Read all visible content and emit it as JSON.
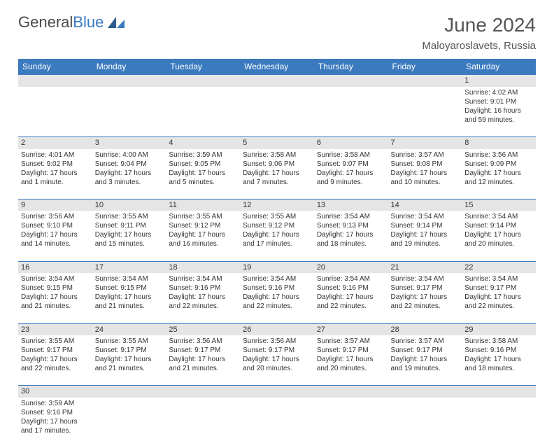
{
  "brand": {
    "part1": "General",
    "part2": "Blue"
  },
  "title": "June 2024",
  "location": "Maloyaroslavets, Russia",
  "colors": {
    "accent": "#3b7abf",
    "headerText": "#ffffff",
    "dayBg": "#e5e5e5",
    "border": "#3b7abf"
  },
  "columns": [
    "Sunday",
    "Monday",
    "Tuesday",
    "Wednesday",
    "Thursday",
    "Friday",
    "Saturday"
  ],
  "weeks": [
    [
      null,
      null,
      null,
      null,
      null,
      null,
      {
        "n": "1",
        "sr": "4:02 AM",
        "ss": "9:01 PM",
        "dl": "16 hours and 59 minutes."
      }
    ],
    [
      {
        "n": "2",
        "sr": "4:01 AM",
        "ss": "9:02 PM",
        "dl": "17 hours and 1 minute."
      },
      {
        "n": "3",
        "sr": "4:00 AM",
        "ss": "9:04 PM",
        "dl": "17 hours and 3 minutes."
      },
      {
        "n": "4",
        "sr": "3:59 AM",
        "ss": "9:05 PM",
        "dl": "17 hours and 5 minutes."
      },
      {
        "n": "5",
        "sr": "3:58 AM",
        "ss": "9:06 PM",
        "dl": "17 hours and 7 minutes."
      },
      {
        "n": "6",
        "sr": "3:58 AM",
        "ss": "9:07 PM",
        "dl": "17 hours and 9 minutes."
      },
      {
        "n": "7",
        "sr": "3:57 AM",
        "ss": "9:08 PM",
        "dl": "17 hours and 10 minutes."
      },
      {
        "n": "8",
        "sr": "3:56 AM",
        "ss": "9:09 PM",
        "dl": "17 hours and 12 minutes."
      }
    ],
    [
      {
        "n": "9",
        "sr": "3:56 AM",
        "ss": "9:10 PM",
        "dl": "17 hours and 14 minutes."
      },
      {
        "n": "10",
        "sr": "3:55 AM",
        "ss": "9:11 PM",
        "dl": "17 hours and 15 minutes."
      },
      {
        "n": "11",
        "sr": "3:55 AM",
        "ss": "9:12 PM",
        "dl": "17 hours and 16 minutes."
      },
      {
        "n": "12",
        "sr": "3:55 AM",
        "ss": "9:12 PM",
        "dl": "17 hours and 17 minutes."
      },
      {
        "n": "13",
        "sr": "3:54 AM",
        "ss": "9:13 PM",
        "dl": "17 hours and 18 minutes."
      },
      {
        "n": "14",
        "sr": "3:54 AM",
        "ss": "9:14 PM",
        "dl": "17 hours and 19 minutes."
      },
      {
        "n": "15",
        "sr": "3:54 AM",
        "ss": "9:14 PM",
        "dl": "17 hours and 20 minutes."
      }
    ],
    [
      {
        "n": "16",
        "sr": "3:54 AM",
        "ss": "9:15 PM",
        "dl": "17 hours and 21 minutes."
      },
      {
        "n": "17",
        "sr": "3:54 AM",
        "ss": "9:15 PM",
        "dl": "17 hours and 21 minutes."
      },
      {
        "n": "18",
        "sr": "3:54 AM",
        "ss": "9:16 PM",
        "dl": "17 hours and 22 minutes."
      },
      {
        "n": "19",
        "sr": "3:54 AM",
        "ss": "9:16 PM",
        "dl": "17 hours and 22 minutes."
      },
      {
        "n": "20",
        "sr": "3:54 AM",
        "ss": "9:16 PM",
        "dl": "17 hours and 22 minutes."
      },
      {
        "n": "21",
        "sr": "3:54 AM",
        "ss": "9:17 PM",
        "dl": "17 hours and 22 minutes."
      },
      {
        "n": "22",
        "sr": "3:54 AM",
        "ss": "9:17 PM",
        "dl": "17 hours and 22 minutes."
      }
    ],
    [
      {
        "n": "23",
        "sr": "3:55 AM",
        "ss": "9:17 PM",
        "dl": "17 hours and 22 minutes."
      },
      {
        "n": "24",
        "sr": "3:55 AM",
        "ss": "9:17 PM",
        "dl": "17 hours and 21 minutes."
      },
      {
        "n": "25",
        "sr": "3:56 AM",
        "ss": "9:17 PM",
        "dl": "17 hours and 21 minutes."
      },
      {
        "n": "26",
        "sr": "3:56 AM",
        "ss": "9:17 PM",
        "dl": "17 hours and 20 minutes."
      },
      {
        "n": "27",
        "sr": "3:57 AM",
        "ss": "9:17 PM",
        "dl": "17 hours and 20 minutes."
      },
      {
        "n": "28",
        "sr": "3:57 AM",
        "ss": "9:17 PM",
        "dl": "17 hours and 19 minutes."
      },
      {
        "n": "29",
        "sr": "3:58 AM",
        "ss": "9:16 PM",
        "dl": "17 hours and 18 minutes."
      }
    ],
    [
      {
        "n": "30",
        "sr": "3:59 AM",
        "ss": "9:16 PM",
        "dl": "17 hours and 17 minutes."
      },
      null,
      null,
      null,
      null,
      null,
      null
    ]
  ],
  "labels": {
    "sunrise": "Sunrise:",
    "sunset": "Sunset:",
    "daylight": "Daylight:"
  }
}
